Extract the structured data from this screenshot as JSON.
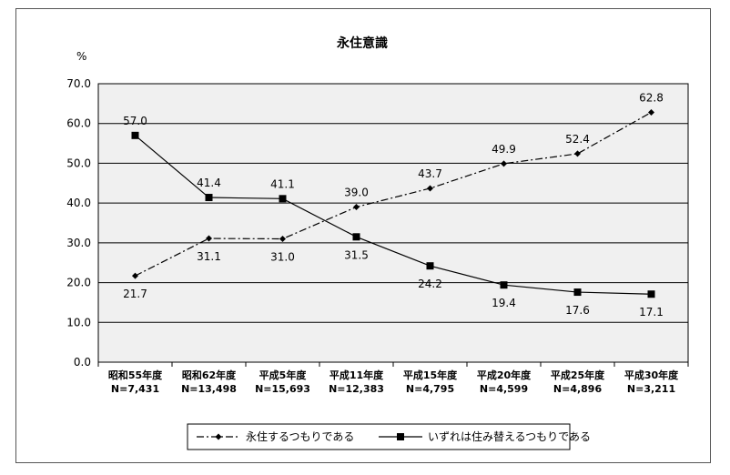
{
  "chart_data": {
    "type": "line",
    "title": "永住意識",
    "ylabel": "%",
    "xlabel": "",
    "ylim": [
      0,
      70
    ],
    "yticks": [
      "0.0",
      "10.0",
      "20.0",
      "30.0",
      "40.0",
      "50.0",
      "60.0",
      "70.0"
    ],
    "grid": true,
    "legend_position": "bottom",
    "categories": [
      {
        "name": "昭和55年度",
        "n": "N=7,431"
      },
      {
        "name": "昭和62年度",
        "n": "N=13,498"
      },
      {
        "name": "平成5年度",
        "n": "N=15,693"
      },
      {
        "name": "平成11年度",
        "n": "N=12,383"
      },
      {
        "name": "平成15年度",
        "n": "N=4,795"
      },
      {
        "name": "平成20年度",
        "n": "N=4,599"
      },
      {
        "name": "平成25年度",
        "n": "N=4,896"
      },
      {
        "name": "平成30年度",
        "n": "N=3,211"
      }
    ],
    "series": [
      {
        "name": "永住するつもりである",
        "style": "dash-dot",
        "marker": "diamond",
        "values": [
          21.7,
          31.1,
          31.0,
          39.0,
          43.7,
          49.9,
          52.4,
          62.8
        ],
        "labels": [
          "21.7",
          "31.1",
          "31.0",
          "39.0",
          "43.7",
          "49.9",
          "52.4",
          "62.8"
        ],
        "label_pos": [
          "below",
          "below",
          "below",
          "above",
          "above",
          "above",
          "above",
          "above"
        ]
      },
      {
        "name": "いずれは住み替えるつもりである",
        "style": "solid",
        "marker": "square",
        "values": [
          57.0,
          41.4,
          41.1,
          31.5,
          24.2,
          19.4,
          17.6,
          17.1
        ],
        "labels": [
          "57.0",
          "41.4",
          "41.1",
          "31.5",
          "24.2",
          "19.4",
          "17.6",
          "17.1"
        ],
        "label_pos": [
          "above",
          "above",
          "above",
          "below",
          "below",
          "below",
          "below",
          "below"
        ]
      }
    ],
    "colors": {
      "plot_bg": "#f0f0f0",
      "grid": "#000000",
      "line": "#000000"
    }
  }
}
